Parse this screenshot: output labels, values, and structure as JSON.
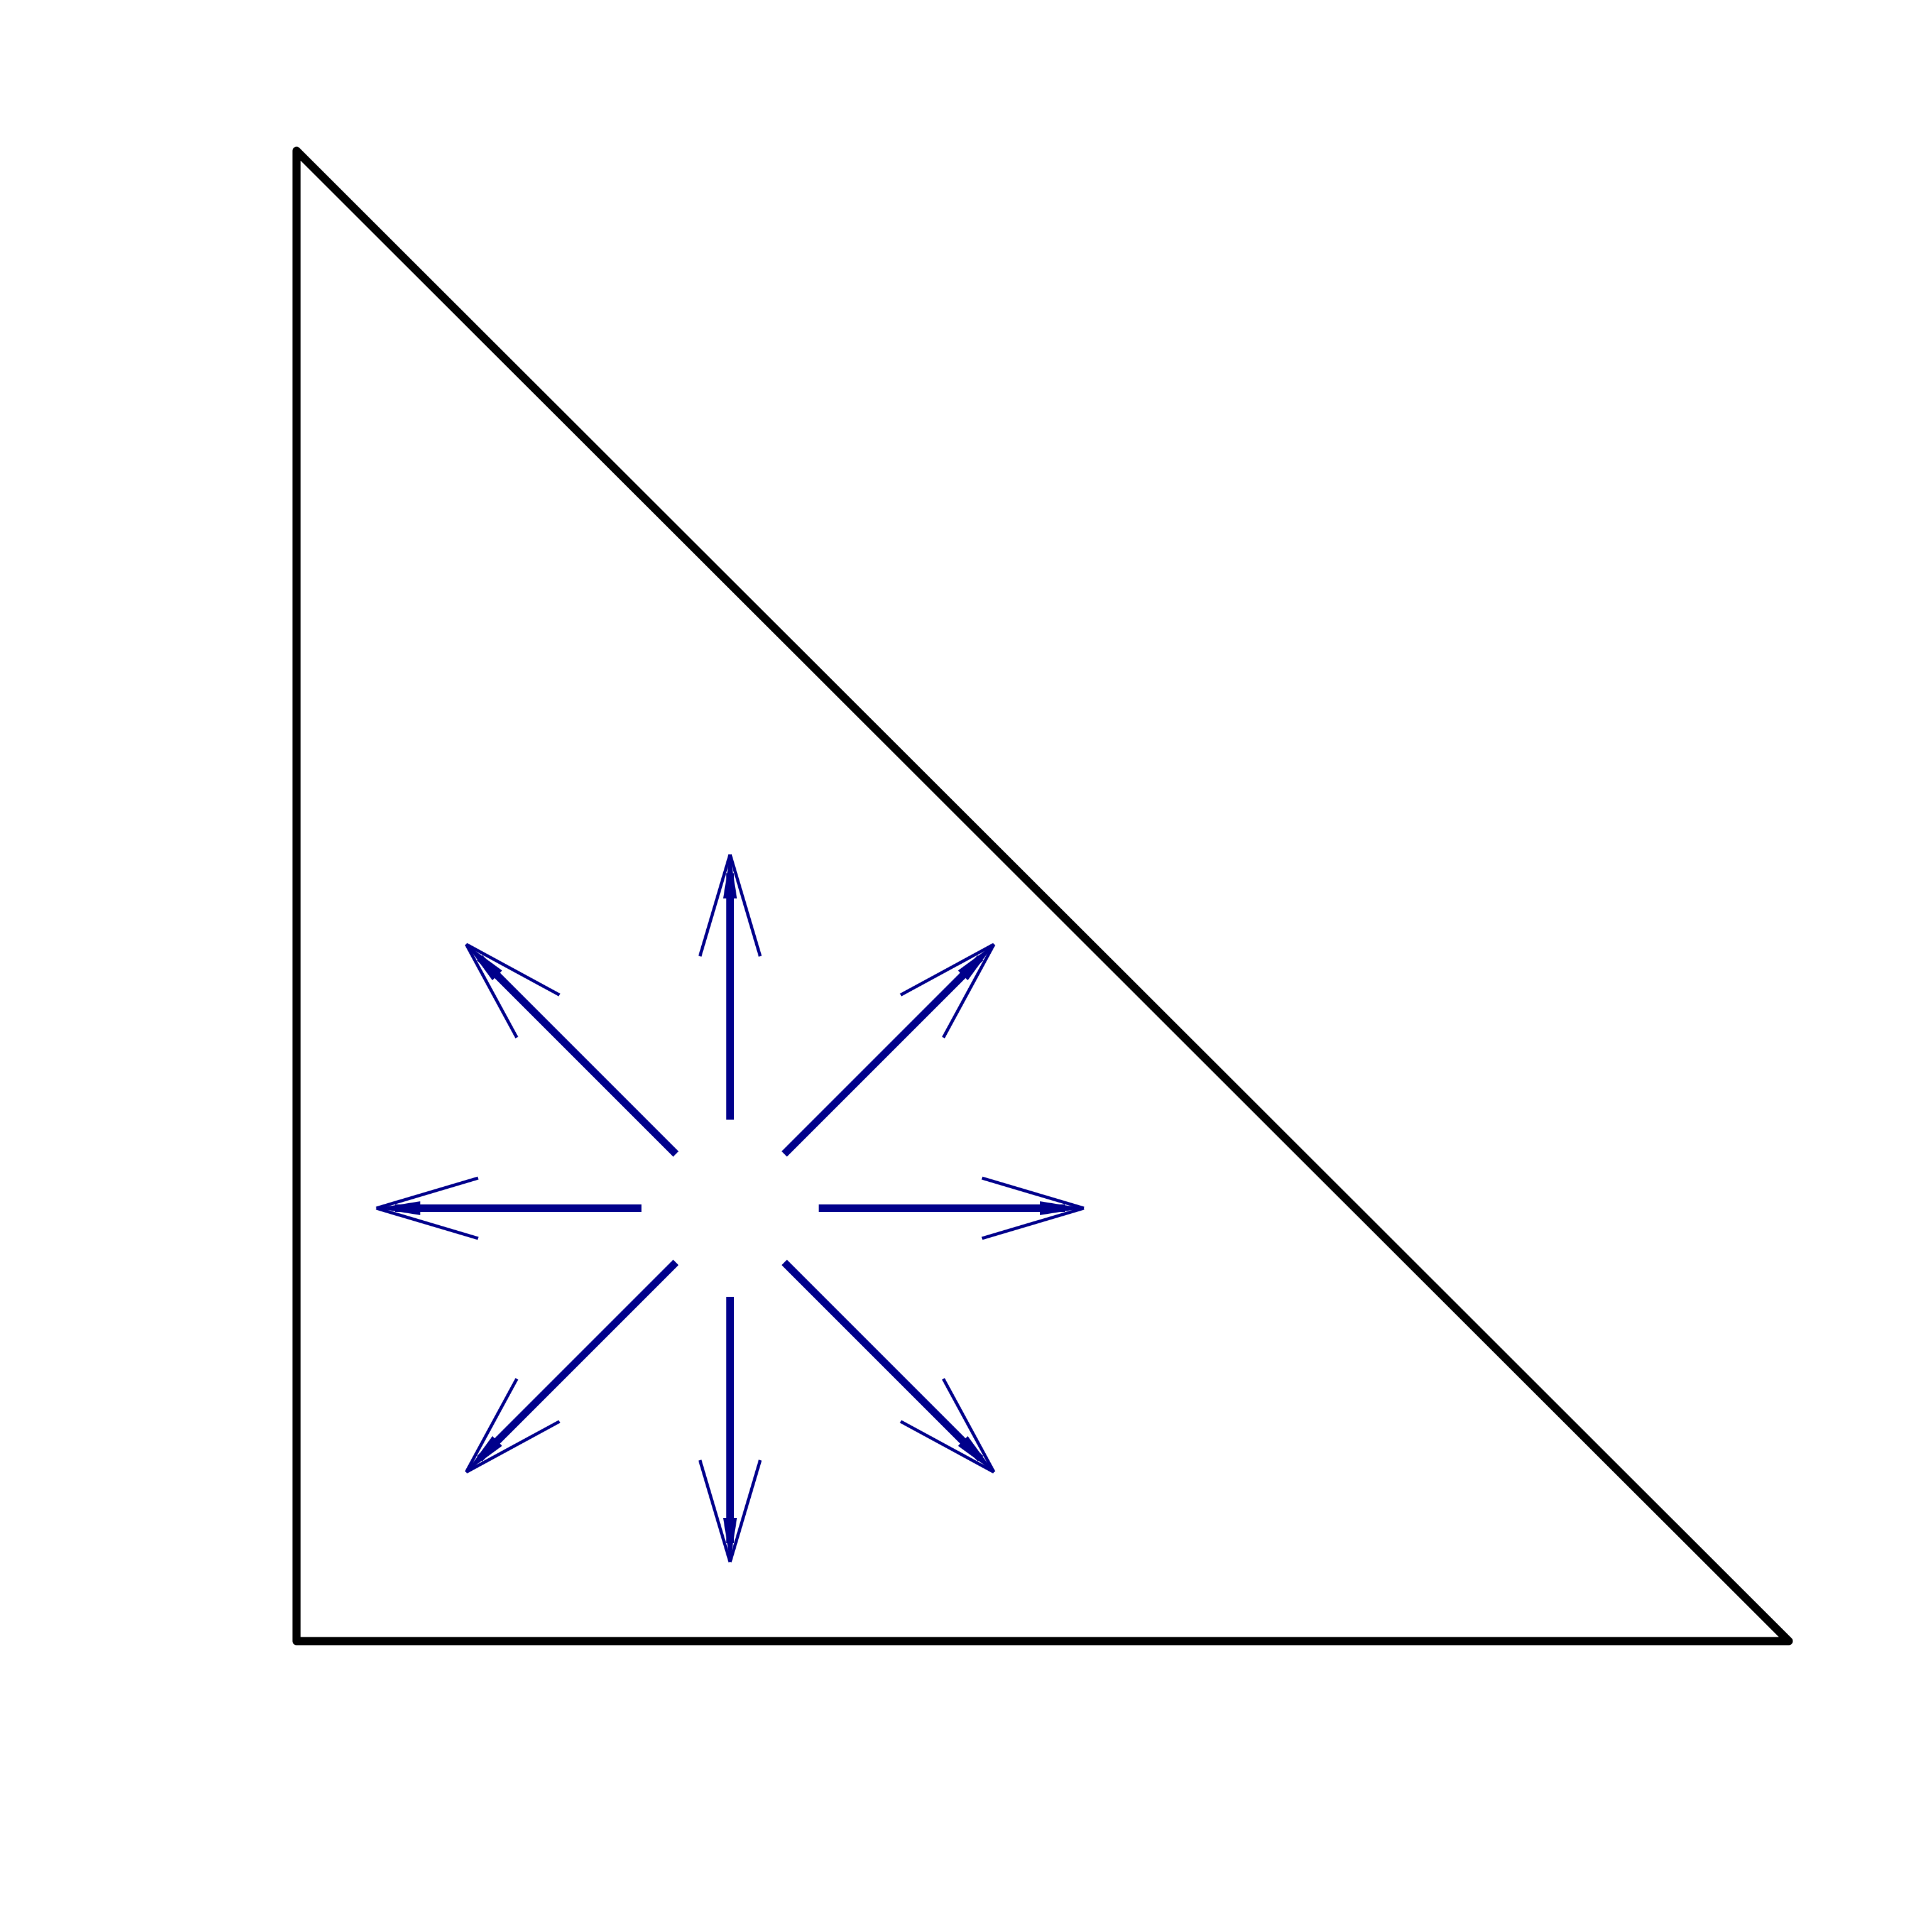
{
  "colors": {
    "background": "#ffffff",
    "outline": "#000000",
    "arrow": "#00008b"
  },
  "diagram": {
    "type": "radial-arrows-in-triangle",
    "shape": "right-triangle",
    "arrow_count": 8,
    "arrow_directions": [
      "up",
      "up-right",
      "right",
      "down-right",
      "down",
      "down-left",
      "left",
      "up-left"
    ]
  }
}
